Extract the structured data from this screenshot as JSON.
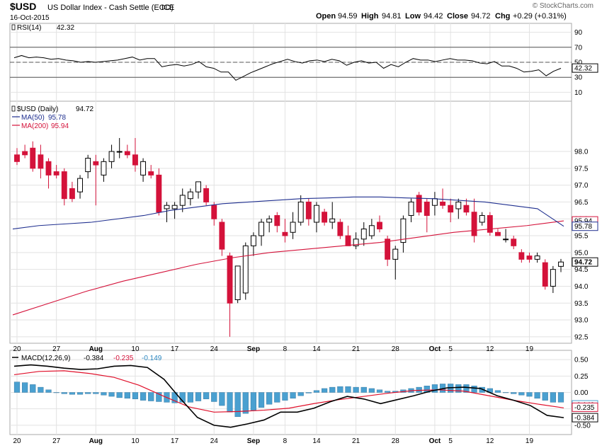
{
  "header": {
    "symbol": "$USD",
    "name": "US Dollar Index - Cash Settle (EOD)",
    "exchange": "ICE",
    "date": "16-Oct-2015",
    "open_label": "Open",
    "open": "94.59",
    "high_label": "High",
    "high": "94.81",
    "low_label": "Low",
    "low": "94.42",
    "close_label": "Close",
    "close": "94.72",
    "chg_label": "Chg",
    "chg": "+0.29 (+0.31%)",
    "brand": "© StockCharts.com"
  },
  "colors": {
    "up": "#000000",
    "down": "#d4123a",
    "ma50": "#1f2f8f",
    "ma200": "#d4123a",
    "hist": "#4aa0d0",
    "signal": "#e0102a",
    "macd": "#000000",
    "grid": "#e2e2e2",
    "frame": "#aaaaaa"
  },
  "chart_data": [
    {
      "type": "line",
      "title": "RSI(14) 42.32",
      "label": "RSI(14)",
      "value": "42.32",
      "ylim": [
        0,
        100
      ],
      "yticks": [
        10,
        30,
        50,
        70,
        90
      ],
      "levels": [
        30,
        50,
        70
      ],
      "value_tag": "42.32",
      "values": [
        56,
        59,
        56,
        57,
        56,
        54,
        55,
        53,
        52,
        50,
        51,
        50,
        51,
        52,
        53,
        55,
        57,
        53,
        55,
        55,
        44,
        46,
        47,
        45,
        47,
        51,
        44,
        42,
        37,
        37,
        26,
        31,
        36,
        40,
        44,
        48,
        51,
        54,
        51,
        49,
        52,
        53,
        51,
        54,
        52,
        46,
        50,
        52,
        49,
        50,
        42,
        47,
        44,
        50,
        55,
        53,
        53,
        51,
        53,
        55,
        53,
        53,
        52,
        49,
        48,
        51,
        45,
        45,
        42,
        37,
        38,
        40,
        32,
        38,
        42
      ]
    },
    {
      "type": "candlestick",
      "title": "$USD (Daily) 94.72",
      "label": "$USD (Daily)",
      "value": "94.72",
      "ylim": [
        92.35,
        99.45
      ],
      "yticks": [
        92.5,
        93.0,
        93.5,
        94.0,
        94.5,
        95.0,
        95.5,
        96.0,
        96.5,
        97.0,
        97.5,
        98.0
      ],
      "ytick_labels": [
        "92.5",
        "93.0",
        "93.5",
        "94.0",
        "94.5",
        "95.0",
        "95.5",
        "96.0",
        "96.5",
        "97.0",
        "97.5",
        "98.0"
      ],
      "legend": [
        {
          "name": "MA(50)",
          "value": "95.78",
          "color": "#1f2f8f"
        },
        {
          "name": "MA(200)",
          "value": "95.94",
          "color": "#d4123a"
        }
      ],
      "value_tags": [
        {
          "text": "95.94",
          "value": 95.94,
          "border": "#d4123a",
          "bold": false
        },
        {
          "text": "95.78",
          "value": 95.78,
          "border": "#1f2f8f",
          "bold": false
        },
        {
          "text": "94.72",
          "value": 94.72,
          "border": "#000000",
          "bold": true
        }
      ],
      "candles": [
        {
          "o": 97.9,
          "h": 98.1,
          "l": 97.6,
          "c": 97.7
        },
        {
          "o": 98.0,
          "h": 98.2,
          "l": 97.8,
          "c": 97.9
        },
        {
          "o": 98.1,
          "h": 98.3,
          "l": 97.4,
          "c": 97.5
        },
        {
          "o": 97.9,
          "h": 98.2,
          "l": 97.2,
          "c": 97.5
        },
        {
          "o": 97.7,
          "h": 97.8,
          "l": 96.9,
          "c": 97.3
        },
        {
          "o": 97.4,
          "h": 97.6,
          "l": 97.2,
          "c": 97.3
        },
        {
          "o": 97.4,
          "h": 97.5,
          "l": 96.4,
          "c": 96.6
        },
        {
          "o": 96.9,
          "h": 97.1,
          "l": 96.5,
          "c": 96.6
        },
        {
          "o": 96.8,
          "h": 97.3,
          "l": 96.6,
          "c": 97.2
        },
        {
          "o": 97.4,
          "h": 97.9,
          "l": 97.2,
          "c": 97.8
        },
        {
          "o": 97.7,
          "h": 97.9,
          "l": 96.4,
          "c": 97.6
        },
        {
          "o": 97.3,
          "h": 97.8,
          "l": 97.1,
          "c": 97.7
        },
        {
          "o": 97.7,
          "h": 98.2,
          "l": 97.5,
          "c": 98.0
        },
        {
          "o": 98.0,
          "h": 98.4,
          "l": 97.8,
          "c": 98.0
        },
        {
          "o": 98.0,
          "h": 98.2,
          "l": 97.8,
          "c": 97.9
        },
        {
          "o": 97.9,
          "h": 98.4,
          "l": 97.4,
          "c": 97.6
        },
        {
          "o": 97.3,
          "h": 97.8,
          "l": 97.1,
          "c": 97.7
        },
        {
          "o": 97.4,
          "h": 97.6,
          "l": 97.2,
          "c": 97.3
        },
        {
          "o": 97.3,
          "h": 97.5,
          "l": 96.1,
          "c": 96.2
        },
        {
          "o": 96.3,
          "h": 96.5,
          "l": 95.9,
          "c": 96.4
        },
        {
          "o": 96.3,
          "h": 96.5,
          "l": 96.0,
          "c": 96.4
        },
        {
          "o": 96.4,
          "h": 96.9,
          "l": 96.2,
          "c": 96.7
        },
        {
          "o": 96.6,
          "h": 96.9,
          "l": 96.4,
          "c": 96.8
        },
        {
          "o": 96.8,
          "h": 97.1,
          "l": 96.6,
          "c": 97.1
        },
        {
          "o": 96.9,
          "h": 97.0,
          "l": 96.4,
          "c": 96.5
        },
        {
          "o": 96.4,
          "h": 96.5,
          "l": 95.8,
          "c": 96.0
        },
        {
          "o": 95.9,
          "h": 96.0,
          "l": 94.9,
          "c": 95.1
        },
        {
          "o": 94.9,
          "h": 95.0,
          "l": 92.5,
          "c": 93.5
        },
        {
          "o": 93.6,
          "h": 94.6,
          "l": 93.5,
          "c": 94.6
        },
        {
          "o": 93.8,
          "h": 95.3,
          "l": 93.6,
          "c": 95.2
        },
        {
          "o": 95.2,
          "h": 95.6,
          "l": 94.9,
          "c": 95.5
        },
        {
          "o": 95.5,
          "h": 96.0,
          "l": 95.2,
          "c": 95.9
        },
        {
          "o": 95.9,
          "h": 96.1,
          "l": 95.6,
          "c": 96.0
        },
        {
          "o": 96.1,
          "h": 96.2,
          "l": 95.6,
          "c": 95.8
        },
        {
          "o": 95.6,
          "h": 96.0,
          "l": 95.3,
          "c": 95.5
        },
        {
          "o": 95.6,
          "h": 96.2,
          "l": 95.4,
          "c": 95.9
        },
        {
          "o": 95.9,
          "h": 96.7,
          "l": 95.8,
          "c": 96.5
        },
        {
          "o": 96.5,
          "h": 96.6,
          "l": 95.8,
          "c": 96.0
        },
        {
          "o": 95.9,
          "h": 96.5,
          "l": 95.6,
          "c": 96.4
        },
        {
          "o": 96.2,
          "h": 96.3,
          "l": 95.8,
          "c": 95.9
        },
        {
          "o": 95.9,
          "h": 96.5,
          "l": 95.7,
          "c": 96.0
        },
        {
          "o": 95.9,
          "h": 96.0,
          "l": 95.4,
          "c": 95.5
        },
        {
          "o": 95.5,
          "h": 95.8,
          "l": 95.2,
          "c": 95.2
        },
        {
          "o": 95.2,
          "h": 95.6,
          "l": 95.1,
          "c": 95.4
        },
        {
          "o": 95.4,
          "h": 95.9,
          "l": 95.2,
          "c": 95.7
        },
        {
          "o": 95.5,
          "h": 96.0,
          "l": 95.4,
          "c": 95.8
        },
        {
          "o": 95.9,
          "h": 96.1,
          "l": 95.6,
          "c": 95.7
        },
        {
          "o": 95.4,
          "h": 95.5,
          "l": 94.6,
          "c": 94.8
        },
        {
          "o": 94.8,
          "h": 95.2,
          "l": 94.2,
          "c": 95.1
        },
        {
          "o": 95.3,
          "h": 96.1,
          "l": 95.0,
          "c": 96.0
        },
        {
          "o": 96.1,
          "h": 96.6,
          "l": 95.9,
          "c": 96.5
        },
        {
          "o": 96.7,
          "h": 96.8,
          "l": 96.1,
          "c": 96.2
        },
        {
          "o": 96.5,
          "h": 96.6,
          "l": 95.6,
          "c": 96.1
        },
        {
          "o": 96.4,
          "h": 96.8,
          "l": 96.1,
          "c": 96.6
        },
        {
          "o": 96.5,
          "h": 96.9,
          "l": 96.3,
          "c": 96.4
        },
        {
          "o": 96.4,
          "h": 96.6,
          "l": 95.9,
          "c": 96.2
        },
        {
          "o": 96.3,
          "h": 96.6,
          "l": 96.0,
          "c": 96.5
        },
        {
          "o": 96.4,
          "h": 96.6,
          "l": 96.1,
          "c": 96.2
        },
        {
          "o": 96.2,
          "h": 96.6,
          "l": 95.3,
          "c": 95.5
        },
        {
          "o": 95.9,
          "h": 96.2,
          "l": 95.8,
          "c": 96.1
        },
        {
          "o": 96.1,
          "h": 96.2,
          "l": 95.5,
          "c": 95.6
        },
        {
          "o": 95.6,
          "h": 95.7,
          "l": 95.5,
          "c": 95.5
        },
        {
          "o": 95.4,
          "h": 95.7,
          "l": 95.3,
          "c": 95.4
        },
        {
          "o": 95.4,
          "h": 95.5,
          "l": 95.1,
          "c": 95.2
        },
        {
          "o": 95.0,
          "h": 95.1,
          "l": 94.7,
          "c": 94.8
        },
        {
          "o": 94.9,
          "h": 95.0,
          "l": 94.7,
          "c": 94.8
        },
        {
          "o": 94.8,
          "h": 95.0,
          "l": 94.7,
          "c": 94.9
        },
        {
          "o": 94.7,
          "h": 94.8,
          "l": 93.9,
          "c": 94.0
        },
        {
          "o": 94.0,
          "h": 94.6,
          "l": 93.8,
          "c": 94.5
        },
        {
          "o": 94.59,
          "h": 94.81,
          "l": 94.42,
          "c": 94.72
        }
      ],
      "ma50": [
        95.7,
        95.8,
        95.85,
        95.9,
        96.0,
        96.1,
        96.25,
        96.35,
        96.45,
        96.5,
        96.55,
        96.6,
        96.62,
        96.65,
        96.65,
        96.62,
        96.6,
        96.55,
        96.5,
        96.4,
        96.3,
        95.78
      ],
      "ma200": [
        93.15,
        93.5,
        93.85,
        94.15,
        94.4,
        94.65,
        94.85,
        95.0,
        95.1,
        95.2,
        95.3,
        95.45,
        95.6,
        95.7,
        95.8,
        95.94
      ]
    },
    {
      "type": "macd",
      "title": "MACD(12,26,9) -0.384, -0.235, -0.149",
      "label": "MACD(12,26,9)",
      "values_text": [
        "-0.384",
        "-0.235",
        "-0.149"
      ],
      "ylim": [
        -0.62,
        0.62
      ],
      "yticks": [
        -0.5,
        -0.25,
        0,
        0.25,
        0.5
      ],
      "ytick_labels": [
        "-0.50",
        "-0.25",
        "0.00",
        "0.25",
        "0.50"
      ],
      "value_tags": [
        {
          "text": "-0.149",
          "value": -0.149,
          "border": "#4aa0d0"
        },
        {
          "text": "-0.235",
          "value": -0.235,
          "border": "#d4123a"
        },
        {
          "text": "-0.384",
          "value": -0.384,
          "border": "#000000"
        }
      ],
      "histogram": [
        0.16,
        0.15,
        0.12,
        0.08,
        0.04,
        0.0,
        -0.02,
        -0.03,
        -0.03,
        -0.02,
        -0.02,
        -0.04,
        -0.06,
        -0.08,
        -0.09,
        -0.1,
        -0.12,
        -0.13,
        -0.14,
        -0.15,
        -0.16,
        -0.15,
        -0.15,
        -0.13,
        -0.1,
        -0.14,
        -0.2,
        -0.3,
        -0.37,
        -0.32,
        -0.27,
        -0.23,
        -0.18,
        -0.15,
        -0.12,
        -0.09,
        -0.05,
        -0.01,
        0.03,
        0.06,
        0.08,
        0.09,
        0.09,
        0.08,
        0.08,
        0.06,
        0.04,
        0.02,
        0.02,
        0.04,
        0.06,
        0.08,
        0.1,
        0.12,
        0.13,
        0.13,
        0.12,
        0.12,
        0.1,
        0.08,
        0.06,
        0.03,
        0.0,
        -0.02,
        -0.04,
        -0.06,
        -0.09,
        -0.12,
        -0.15,
        -0.149
      ],
      "macd_line": [
        0.4,
        0.42,
        0.4,
        0.37,
        0.35,
        0.36,
        0.4,
        0.41,
        0.38,
        0.2,
        -0.1,
        -0.38,
        -0.5,
        -0.53,
        -0.48,
        -0.42,
        -0.3,
        -0.3,
        -0.24,
        -0.14,
        -0.06,
        -0.1,
        -0.17,
        -0.11,
        -0.05,
        0.02,
        0.07,
        0.08,
        0.06,
        -0.05,
        -0.12,
        -0.2,
        -0.35,
        -0.384
      ],
      "signal_line": [
        0.27,
        0.32,
        0.33,
        0.29,
        0.23,
        0.11,
        -0.06,
        -0.22,
        -0.3,
        -0.29,
        -0.27,
        -0.24,
        -0.17,
        -0.11,
        -0.06,
        -0.01,
        0.03,
        0.04,
        0.02,
        -0.05,
        -0.12,
        -0.18,
        -0.235
      ]
    }
  ],
  "x_axis": {
    "labels": [
      {
        "text": "20",
        "bar": 0,
        "bold": false
      },
      {
        "text": "27",
        "bar": 5,
        "bold": false
      },
      {
        "text": "Aug",
        "bar": 10,
        "bold": true
      },
      {
        "text": "10",
        "bar": 15,
        "bold": false
      },
      {
        "text": "17",
        "bar": 20,
        "bold": false
      },
      {
        "text": "24",
        "bar": 25,
        "bold": false
      },
      {
        "text": "Sep",
        "bar": 30,
        "bold": true
      },
      {
        "text": "8",
        "bar": 34,
        "bold": false
      },
      {
        "text": "14",
        "bar": 38,
        "bold": false
      },
      {
        "text": "21",
        "bar": 43,
        "bold": false
      },
      {
        "text": "28",
        "bar": 48,
        "bold": false
      },
      {
        "text": "Oct",
        "bar": 53,
        "bold": true
      },
      {
        "text": "5",
        "bar": 55,
        "bold": false
      },
      {
        "text": "12",
        "bar": 60,
        "bold": false
      },
      {
        "text": "19",
        "bar": 65,
        "bold": false
      }
    ]
  }
}
